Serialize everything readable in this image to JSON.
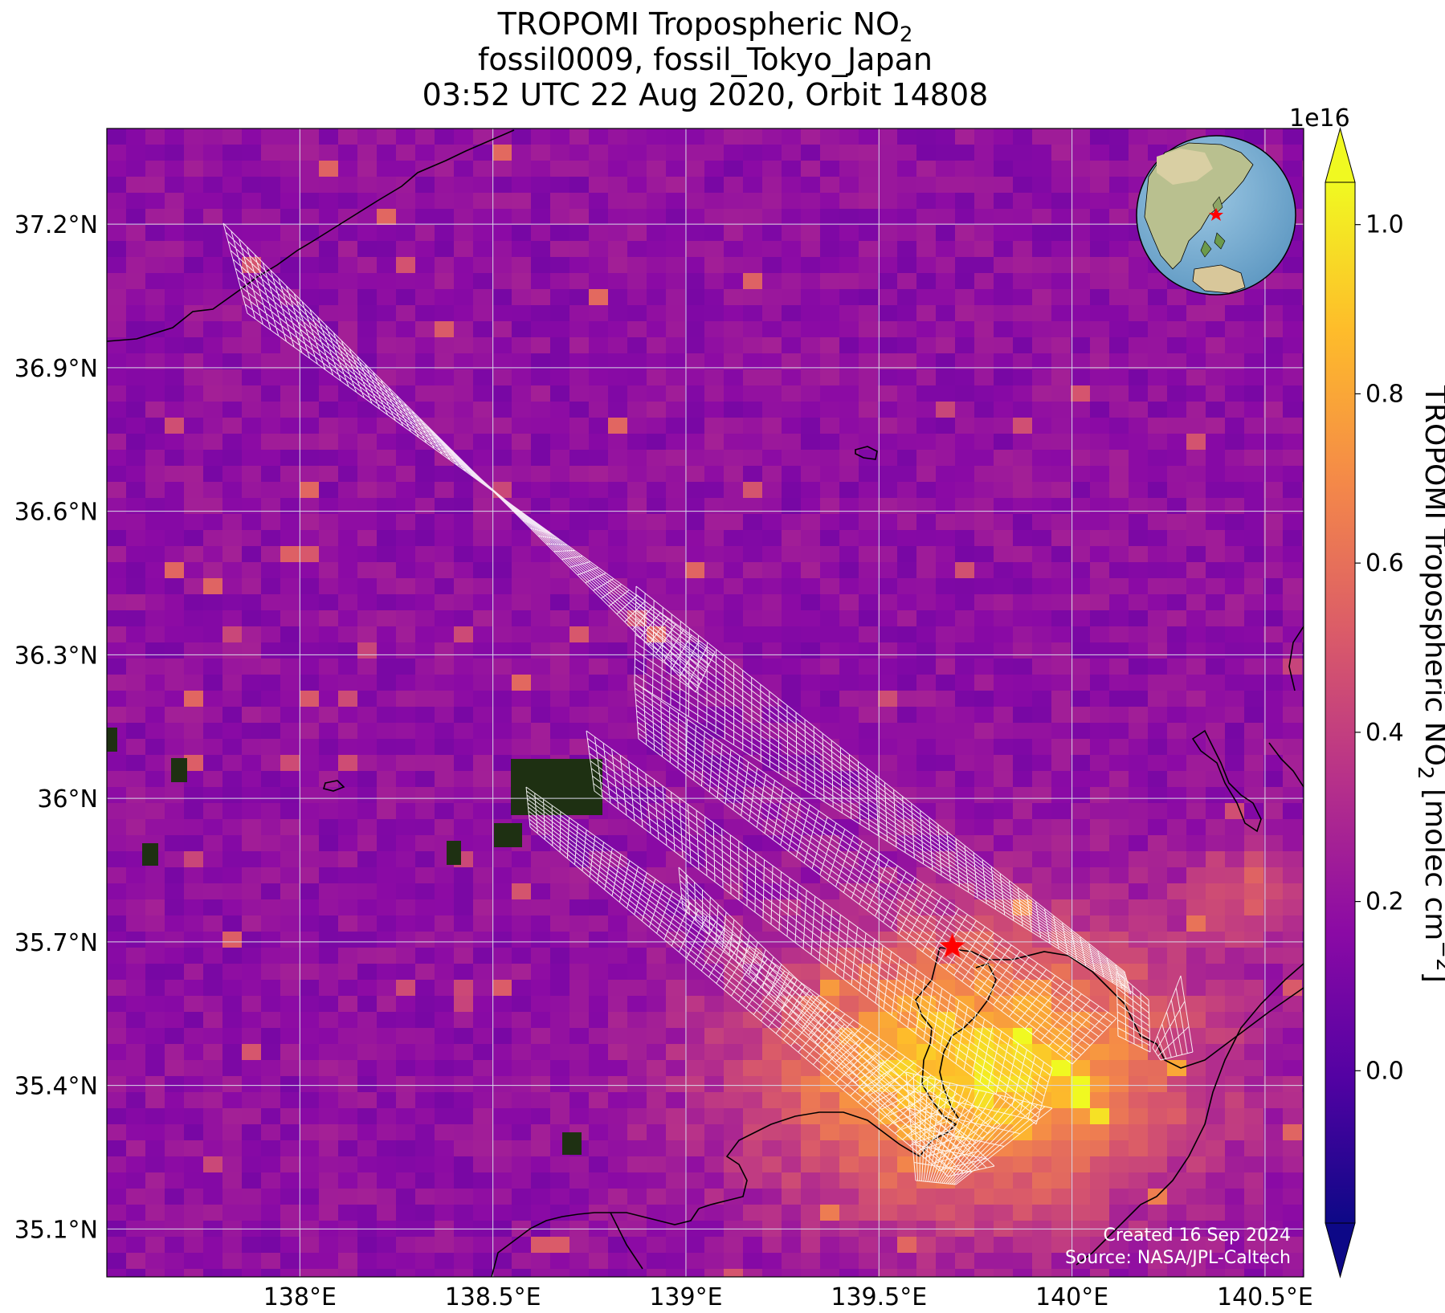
{
  "title": {
    "line1_main": "TROPOMI Tropospheric NO",
    "line1_sub": "2",
    "line2": "fossil0009, fossil_Tokyo_Japan",
    "line3": "03:52 UTC 22 Aug 2020, Orbit 14808"
  },
  "map": {
    "lon_range": [
      137.5,
      140.6
    ],
    "lat_range": [
      35.0,
      37.4
    ],
    "lat_ticks": [
      {
        "value": 37.2,
        "label": "37.2°N"
      },
      {
        "value": 36.9,
        "label": "36.9°N"
      },
      {
        "value": 36.6,
        "label": "36.6°N"
      },
      {
        "value": 36.3,
        "label": "36.3°N"
      },
      {
        "value": 36.0,
        "label": "36°N"
      },
      {
        "value": 35.7,
        "label": "35.7°N"
      },
      {
        "value": 35.4,
        "label": "35.4°N"
      },
      {
        "value": 35.1,
        "label": "35.1°N"
      }
    ],
    "lon_ticks": [
      {
        "value": 138.0,
        "label": "138°E"
      },
      {
        "value": 138.5,
        "label": "138.5°E"
      },
      {
        "value": 139.0,
        "label": "139°E"
      },
      {
        "value": 139.5,
        "label": "139.5°E"
      },
      {
        "value": 140.0,
        "label": "140°E"
      },
      {
        "value": 140.5,
        "label": "140.5°E"
      }
    ],
    "target_marker": {
      "lon": 139.69,
      "lat": 35.69,
      "color": "#ff0000"
    },
    "grid_color": "#d8d8e8",
    "footer_line1": "Created 16 Sep 2024",
    "footer_line2": "Source: NASA/JPL-Caltech"
  },
  "colorbar": {
    "exponent_label": "1e16",
    "range": [
      -0.18,
      1.05
    ],
    "ticks": [
      {
        "value": 0.0,
        "label": "0.0"
      },
      {
        "value": 0.2,
        "label": "0.2"
      },
      {
        "value": 0.4,
        "label": "0.4"
      },
      {
        "value": 0.6,
        "label": "0.6"
      },
      {
        "value": 0.8,
        "label": "0.8"
      },
      {
        "value": 1.0,
        "label": "1.0"
      }
    ],
    "label_main": "TROPOMI Tropospheric NO",
    "label_sub": "2",
    "label_unit": " [molec cm",
    "label_sup": "−2",
    "label_end": "]",
    "colors": [
      "#0d0887",
      "#5302a3",
      "#8b0aa5",
      "#b83289",
      "#db5c68",
      "#f48849",
      "#febd2a",
      "#f0f921"
    ]
  }
}
